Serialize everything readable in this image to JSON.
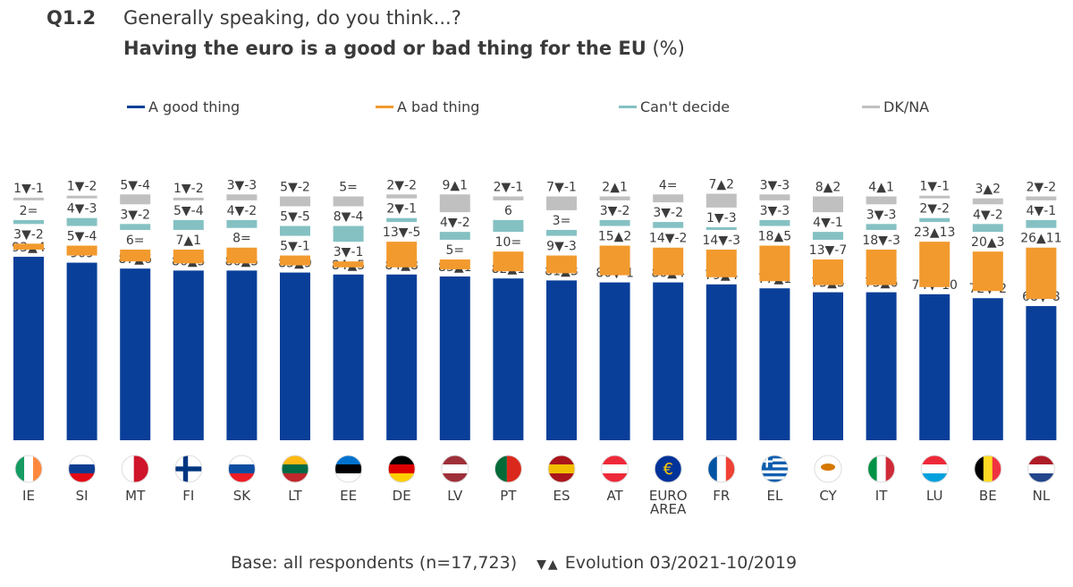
{
  "header": {
    "code": "Q1.2",
    "subtitle": "Generally speaking, do you think...?",
    "title": "Having the euro is a good or bad thing for the EU",
    "unit": "(%)"
  },
  "footer": {
    "base": "Base: all respondents (n=17,723)",
    "evolution_symbols": "▼▲",
    "evolution": "Evolution 03/2021-10/2019"
  },
  "colors": {
    "good": "#0a3f99",
    "bad": "#f29a2e",
    "cant": "#85c1c3",
    "dk": "#c0c0c0"
  },
  "chart_data": {
    "type": "bar",
    "stacked": true,
    "legend_position": "top",
    "categories": [
      "IE",
      "SI",
      "MT",
      "FI",
      "SK",
      "LT",
      "EE",
      "DE",
      "LV",
      "PT",
      "ES",
      "AT",
      "EURO AREA",
      "FR",
      "EL",
      "CY",
      "IT",
      "LU",
      "BE",
      "NL"
    ],
    "series": [
      {
        "name": "A good thing",
        "key": "good",
        "values": [
          93,
          90,
          87,
          86,
          86,
          85,
          84,
          84,
          83,
          82,
          81,
          80,
          80,
          79,
          77,
          75,
          75,
          74,
          72,
          68
        ],
        "evolution": [
          "▲4",
          "9",
          "▲6",
          "▲5",
          "▲5",
          "▲9",
          "▲5",
          "▲8",
          "▲1",
          "▲1",
          "▲3",
          "▼-1",
          "▲4",
          "▲4",
          "▲1",
          "▲5",
          "▲6",
          "▼-10",
          "▼-2",
          "▼-8"
        ]
      },
      {
        "name": "A bad thing",
        "key": "bad",
        "values": [
          3,
          5,
          6,
          7,
          8,
          5,
          3,
          13,
          5,
          10,
          9,
          15,
          14,
          14,
          18,
          13,
          18,
          23,
          20,
          26
        ],
        "evolution": [
          "▼-2",
          "▼-4",
          "=",
          "▲1",
          "=",
          "▼-1",
          "▼-1",
          "▼-5",
          "=",
          "=",
          "▼-3",
          "▲2",
          "▼-2",
          "▼-3",
          "▲5",
          "▼-7",
          "▼-3",
          "▲13",
          "▲3",
          "▲11"
        ]
      },
      {
        "name": "Can't decide",
        "key": "cant",
        "values": [
          2,
          4,
          3,
          5,
          4,
          5,
          8,
          2,
          4,
          6,
          3,
          3,
          3,
          1,
          3,
          4,
          3,
          2,
          4,
          4
        ],
        "evolution": [
          "=",
          "▼-3",
          "▼-2",
          "▼-4",
          "▼-2",
          "▼-5",
          "▼-4",
          "▼-1",
          "▼-2",
          "",
          "=",
          "▼-2",
          "▼-2",
          "▼-3",
          "▼-3",
          "▼-1",
          "▼-3",
          "▼-2",
          "▼-2",
          "▼-1"
        ]
      },
      {
        "name": "DK/NA",
        "key": "dk",
        "values": [
          1,
          1,
          5,
          1,
          3,
          5,
          5,
          2,
          9,
          2,
          7,
          2,
          4,
          7,
          3,
          8,
          4,
          1,
          3,
          2
        ],
        "evolution": [
          "▼-1",
          "▼-2",
          "▼-4",
          "▼-2",
          "▼-3",
          "▼-2",
          "=",
          "▼-2",
          "▲1",
          "▼-1",
          "▼-1",
          "▲1",
          "=",
          "▲2",
          "▼-3",
          "▲2",
          "▲1",
          "▼-1",
          "▲2",
          "▼-2"
        ]
      }
    ]
  }
}
